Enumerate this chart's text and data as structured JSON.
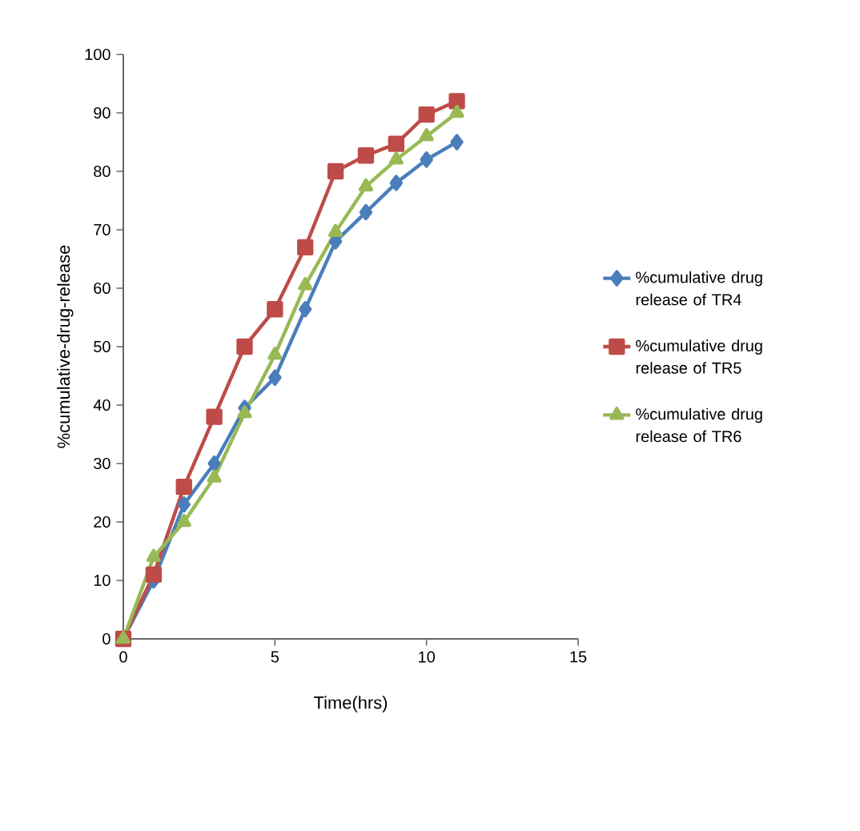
{
  "chart_data": {
    "type": "line",
    "xlabel": "Time(hrs)",
    "ylabel": "%cumulative-drug-release",
    "x": [
      0,
      1,
      2,
      3,
      4,
      5,
      6,
      7,
      8,
      9,
      10,
      11
    ],
    "series": [
      {
        "name": "%cumulative drug release of TR4",
        "color": "#4a7ebb",
        "marker": "diamond",
        "values": [
          0,
          10,
          23,
          30,
          39.5,
          44.7,
          56.4,
          68,
          73,
          78,
          82,
          85
        ]
      },
      {
        "name": "%cumulative drug release of TR5",
        "color": "#be4b48",
        "marker": "square",
        "values": [
          0,
          11,
          26,
          38,
          50,
          56.4,
          67,
          80,
          82.7,
          84.7,
          89.7,
          92
        ]
      },
      {
        "name": "%cumulative drug release of TR6",
        "color": "#98b954",
        "marker": "triangle",
        "values": [
          0,
          14,
          20,
          27.6,
          38.6,
          48.6,
          60.5,
          69.6,
          77.4,
          82,
          86,
          90
        ]
      }
    ],
    "xlim": [
      0,
      15
    ],
    "ylim": [
      0,
      100
    ],
    "xticks": [
      0,
      5,
      10,
      15
    ],
    "yticks": [
      0,
      10,
      20,
      30,
      40,
      50,
      60,
      70,
      80,
      90,
      100
    ],
    "grid": false,
    "legend": "right",
    "line_style": "solid"
  }
}
